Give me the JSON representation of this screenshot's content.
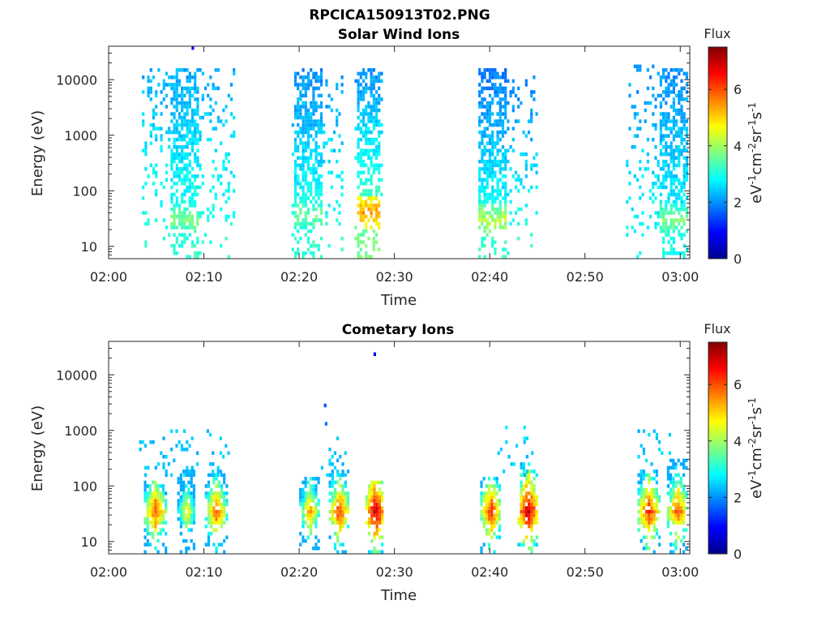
{
  "figure": {
    "title": "RPCICA150913T02.PNG",
    "colormap": [
      "#00008f",
      "#0000ff",
      "#0080ff",
      "#00ffff",
      "#80ff80",
      "#ffff00",
      "#ff8000",
      "#ff0000",
      "#800000"
    ]
  },
  "chart_data": [
    {
      "type": "heatmap",
      "title": "Solar Wind Ions",
      "xlabel": "Time",
      "ylabel": "Energy (eV)",
      "x_ticks": [
        "02:00",
        "02:10",
        "02:20",
        "02:30",
        "02:40",
        "02:50",
        "03:00"
      ],
      "x_tick_minutes": [
        0,
        10,
        20,
        30,
        40,
        50,
        60
      ],
      "xlim_minutes": [
        0,
        61
      ],
      "y_scale": "log",
      "y_ticks": [
        "10",
        "100",
        "1000",
        "10000"
      ],
      "y_tick_values": [
        10,
        100,
        1000,
        10000
      ],
      "ylim": [
        6,
        40000
      ],
      "colorbar": {
        "title": "Flux",
        "label": "eV-1cm-2sr-1s-1",
        "ticks": [
          "0",
          "2",
          "4",
          "6"
        ],
        "tick_values": [
          0,
          2,
          4,
          6
        ],
        "range": [
          0,
          7.5
        ]
      },
      "clusters": [
        {
          "t_start": 3.5,
          "t_end": 13.2,
          "core_start": 6.3,
          "core_end": 9.4,
          "e_min": 6,
          "e_max": 15000,
          "sparse_e_max": 15000,
          "flux_high": 2.2,
          "flux_low": 3.2,
          "peak_energy": 30,
          "peak_flux": 3.8
        },
        {
          "t_start": 19.2,
          "t_end": 24.5,
          "core_start": 19.4,
          "core_end": 22.3,
          "e_min": 6,
          "e_max": 15000,
          "sparse_e_max": 20000,
          "flux_high": 2.0,
          "flux_low": 3.2,
          "peak_energy": 35,
          "peak_flux": 3.7
        },
        {
          "t_start": 25.8,
          "t_end": 28.6,
          "core_start": 25.9,
          "core_end": 28.5,
          "e_min": 6,
          "e_max": 15000,
          "sparse_e_max": 15000,
          "flux_high": 2.0,
          "flux_low": 3.8,
          "peak_energy": 40,
          "peak_flux": 5.4
        },
        {
          "t_start": 38.8,
          "t_end": 44.8,
          "core_start": 38.8,
          "core_end": 41.6,
          "e_min": 6,
          "e_max": 15000,
          "sparse_e_max": 12000,
          "flux_high": 1.8,
          "flux_low": 3.3,
          "peak_energy": 30,
          "peak_flux": 4.2
        },
        {
          "t_start": 54.3,
          "t_end": 60.8,
          "core_start": 57.6,
          "core_end": 60.6,
          "e_min": 6,
          "e_max": 15000,
          "sparse_e_max": 20000,
          "flux_high": 2.0,
          "flux_low": 3.0,
          "peak_energy": 30,
          "peak_flux": 3.8
        }
      ],
      "specks": [
        {
          "t": 8.7,
          "e": 37000,
          "flux": 1.0
        }
      ]
    },
    {
      "type": "heatmap",
      "title": "Cometary Ions",
      "xlabel": "Time",
      "ylabel": "Energy (eV)",
      "x_ticks": [
        "02:00",
        "02:10",
        "02:20",
        "02:30",
        "02:40",
        "02:50",
        "03:00"
      ],
      "x_tick_minutes": [
        0,
        10,
        20,
        30,
        40,
        50,
        60
      ],
      "xlim_minutes": [
        0,
        61
      ],
      "y_scale": "log",
      "y_ticks": [
        "10",
        "100",
        "1000",
        "10000"
      ],
      "y_tick_values": [
        10,
        100,
        1000,
        10000
      ],
      "ylim": [
        6,
        40000
      ],
      "colorbar": {
        "title": "Flux",
        "label": "eV-1cm-2sr-1s-1",
        "ticks": [
          "0",
          "2",
          "4",
          "6"
        ],
        "tick_values": [
          0,
          2,
          4,
          6
        ],
        "range": [
          0,
          7.5
        ]
      },
      "blobs": [
        {
          "t": 4.8,
          "width": 2.2,
          "peak_flux": 6.2,
          "extent_max": 120
        },
        {
          "t": 8.1,
          "width": 1.8,
          "peak_flux": 5.0,
          "extent_max": 200
        },
        {
          "t": 11.2,
          "width": 2.2,
          "peak_flux": 6.0,
          "extent_max": 180
        },
        {
          "t": 21.0,
          "width": 2.0,
          "peak_flux": 5.5,
          "extent_max": 150
        },
        {
          "t": 24.1,
          "width": 2.0,
          "peak_flux": 6.4,
          "extent_max": 200
        },
        {
          "t": 27.9,
          "width": 1.9,
          "peak_flux": 7.3,
          "extent_max": 130
        },
        {
          "t": 40.0,
          "width": 2.0,
          "peak_flux": 6.5,
          "extent_max": 150
        },
        {
          "t": 43.9,
          "width": 2.0,
          "peak_flux": 7.3,
          "extent_max": 250
        },
        {
          "t": 56.6,
          "width": 2.2,
          "peak_flux": 6.5,
          "extent_max": 200
        },
        {
          "t": 59.6,
          "width": 2.0,
          "peak_flux": 6.3,
          "extent_max": 300
        }
      ],
      "sparse_clusters": [
        {
          "t_start": 3.2,
          "t_end": 12.6,
          "e_min": 150,
          "e_max": 1100,
          "flux": 2.4
        },
        {
          "t_start": 22.0,
          "t_end": 25.2,
          "e_min": 150,
          "e_max": 800,
          "flux": 2.4
        },
        {
          "t_start": 40.8,
          "t_end": 44.8,
          "e_min": 150,
          "e_max": 1200,
          "flux": 2.5
        },
        {
          "t_start": 55.5,
          "t_end": 59.0,
          "e_min": 150,
          "e_max": 1000,
          "flux": 2.4
        }
      ],
      "specks": [
        {
          "t": 27.8,
          "e": 22000,
          "flux": 0.8
        },
        {
          "t": 22.6,
          "e": 2800,
          "flux": 1.5
        },
        {
          "t": 22.7,
          "e": 1300,
          "flux": 1.8
        }
      ]
    }
  ]
}
